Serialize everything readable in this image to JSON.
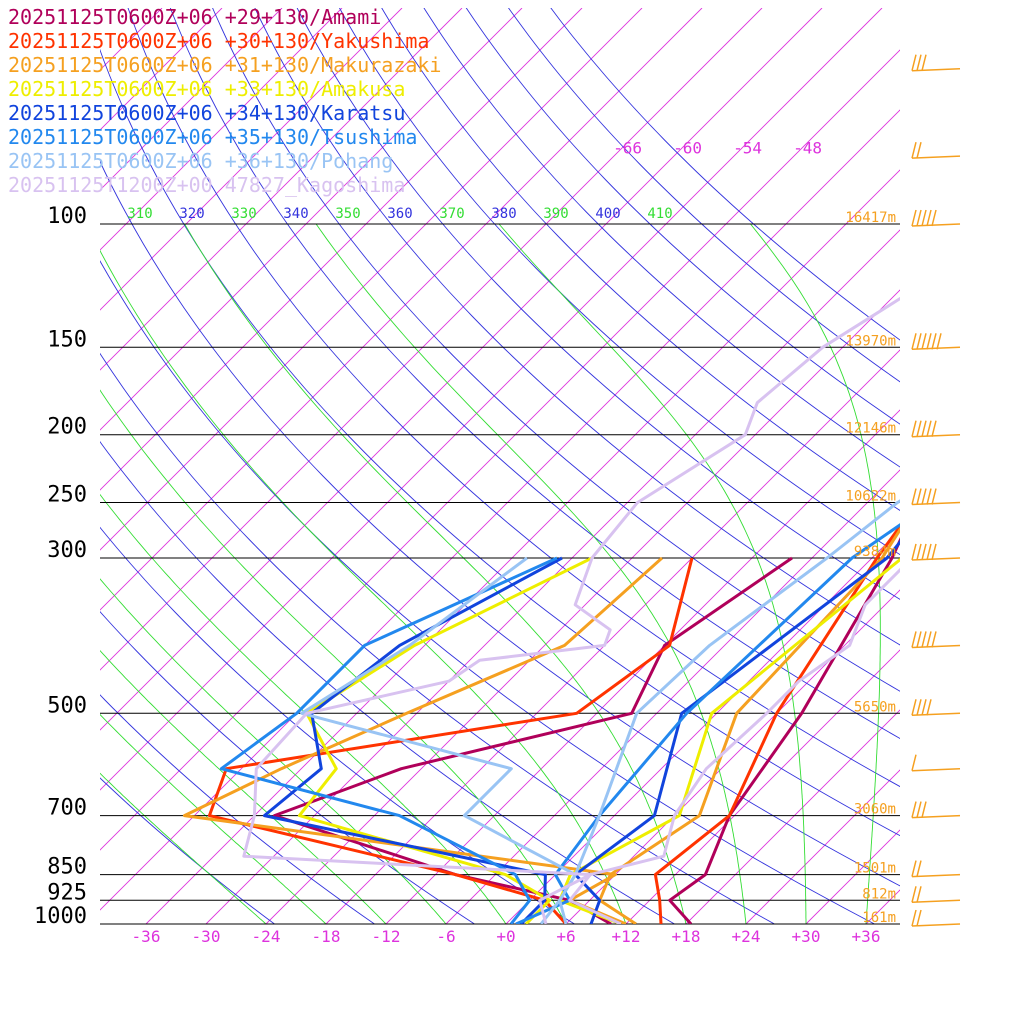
{
  "chart_data": {
    "type": "line",
    "title": "",
    "xlabel": "",
    "ylabel": "",
    "xlim": [
      -40,
      40
    ],
    "x_ticks": [
      "-36",
      "-30",
      "-24",
      "-18",
      "-12",
      "-6",
      "+0",
      "+6",
      "+12",
      "+18",
      "+24",
      "+30",
      "+36"
    ],
    "x_tick_values": [
      -36,
      -30,
      -24,
      -18,
      -12,
      -6,
      0,
      6,
      12,
      18,
      24,
      30,
      36
    ],
    "pressure_levels": [
      100,
      150,
      200,
      250,
      300,
      500,
      700,
      850,
      925,
      1000
    ],
    "pressure_labels": [
      "100",
      "150",
      "200",
      "250",
      "300",
      "500",
      "700",
      "850",
      "925",
      "1000"
    ],
    "heights": [
      {
        "p": 100,
        "label": "16417m"
      },
      {
        "p": 150,
        "label": "13970m"
      },
      {
        "p": 200,
        "label": "12146m"
      },
      {
        "p": 250,
        "label": "10622m"
      },
      {
        "p": 300,
        "label": "9384m"
      },
      {
        "p": 500,
        "label": "5650m"
      },
      {
        "p": 700,
        "label": "3060m"
      },
      {
        "p": 850,
        "label": "1501m"
      },
      {
        "p": 925,
        "label": "812m"
      },
      {
        "p": 1000,
        "label": "161m"
      }
    ],
    "theta_labels": [
      "310",
      "320",
      "330",
      "340",
      "350",
      "360",
      "370",
      "380",
      "390",
      "400",
      "410"
    ],
    "isotherm_top_labels": [
      "-66",
      "-60",
      "-54",
      "-48"
    ],
    "legend_position": "top-left",
    "colors": {
      "isotherm": "#dd33dd",
      "dry_adiabat": "#3333dd",
      "moist_adiabat": "#33dd33",
      "heights": "#f5a020",
      "wind": "#f5a020",
      "isobar": "#000000"
    },
    "series": [
      {
        "name": "20251125T0600Z+06 +29+130/Amami",
        "color": "#b0005a",
        "temp": [
          [
            1000,
            18.5
          ],
          [
            925,
            14
          ],
          [
            850,
            15
          ],
          [
            700,
            11.5
          ],
          [
            500,
            8.5
          ],
          [
            300,
            2
          ],
          [
            250,
            -1
          ],
          [
            200,
            -5
          ],
          [
            150,
            -6
          ],
          [
            120,
            -7
          ],
          [
            100,
            -2
          ],
          [
            80,
            10
          ],
          [
            60,
            50
          ],
          [
            50,
            55
          ]
        ],
        "dew": [
          [
            1000,
            10.5
          ],
          [
            925,
            4
          ],
          [
            850,
            -10
          ],
          [
            700,
            -34
          ],
          [
            600,
            -26
          ],
          [
            500,
            -8.5
          ],
          [
            400,
            -12
          ],
          [
            300,
            -8
          ]
        ]
      },
      {
        "name": "20251125T0600Z+06 +30+130/Yakushima",
        "color": "#ff3300",
        "temp": [
          [
            1000,
            15.5
          ],
          [
            925,
            13
          ],
          [
            850,
            10
          ],
          [
            700,
            11.5
          ],
          [
            500,
            6
          ],
          [
            300,
            0.5
          ],
          [
            250,
            -1
          ],
          [
            200,
            -4
          ],
          [
            150,
            -5.5
          ],
          [
            120,
            -6
          ],
          [
            100,
            -0.5
          ],
          [
            80,
            5
          ],
          [
            60,
            45
          ],
          [
            50,
            55
          ]
        ],
        "dew": [
          [
            1000,
            6
          ],
          [
            925,
            1.5
          ],
          [
            850,
            -10
          ],
          [
            700,
            -40.5
          ],
          [
            600,
            -43.5
          ],
          [
            500,
            -14
          ],
          [
            400,
            -11.5
          ],
          [
            300,
            -18
          ]
        ]
      },
      {
        "name": "20251125T0600Z+06 +31+130/Makurazaki",
        "color": "#f5a020",
        "temp": [
          [
            1000,
            13
          ],
          [
            925,
            7
          ],
          [
            850,
            5.5
          ],
          [
            700,
            8.5
          ],
          [
            500,
            2
          ],
          [
            300,
            1
          ],
          [
            250,
            -1
          ],
          [
            200,
            -6
          ],
          [
            150,
            -9
          ],
          [
            120,
            -7
          ],
          [
            100,
            1.5
          ],
          [
            80,
            4
          ],
          [
            60,
            45
          ],
          [
            50,
            55
          ]
        ],
        "dew": [
          [
            1000,
            12
          ],
          [
            925,
            4
          ],
          [
            850,
            6
          ],
          [
            700,
            -43
          ],
          [
            600,
            -38
          ],
          [
            500,
            -31
          ],
          [
            400,
            -22
          ],
          [
            300,
            -21
          ]
        ]
      },
      {
        "name": "20251125T0600Z+06 +33+130/Amakusa",
        "color": "#eeee00",
        "temp": [
          [
            1000,
            11.5
          ],
          [
            925,
            3
          ],
          [
            850,
            1.5
          ],
          [
            700,
            6.5
          ],
          [
            500,
            -0.5
          ],
          [
            300,
            3
          ],
          [
            250,
            -1
          ],
          [
            200,
            -7
          ],
          [
            150,
            -3.5
          ],
          [
            120,
            0
          ],
          [
            100,
            5
          ],
          [
            80,
            15
          ],
          [
            60,
            45
          ],
          [
            50,
            55
          ]
        ],
        "dew": [
          [
            1000,
            2
          ],
          [
            925,
            2
          ],
          [
            850,
            -5
          ],
          [
            700,
            -31.5
          ],
          [
            600,
            -32.5
          ],
          [
            500,
            -41
          ],
          [
            400,
            -37
          ],
          [
            300,
            -28
          ]
        ]
      },
      {
        "name": "20251125T0600Z+06 +34+130/Karatsu",
        "color": "#1144dd",
        "temp": [
          [
            1000,
            8.5
          ],
          [
            925,
            7
          ],
          [
            850,
            2
          ],
          [
            700,
            4
          ],
          [
            500,
            -3.5
          ],
          [
            300,
            1.5
          ],
          [
            250,
            0.5
          ],
          [
            200,
            -1
          ],
          [
            150,
            -0.5
          ],
          [
            120,
            -0.5
          ],
          [
            100,
            5
          ],
          [
            80,
            10
          ],
          [
            60,
            48
          ],
          [
            50,
            55
          ]
        ],
        "dew": [
          [
            1000,
            1.5
          ],
          [
            925,
            1.5
          ],
          [
            850,
            -1
          ],
          [
            700,
            -35
          ],
          [
            600,
            -34
          ],
          [
            500,
            -40.5
          ],
          [
            400,
            -38.5
          ],
          [
            300,
            -31
          ]
        ]
      },
      {
        "name": "20251125T0600Z+06 +35+130/Tsushima",
        "color": "#2288ee",
        "temp": [
          [
            1000,
            1
          ],
          [
            925,
            4
          ],
          [
            850,
            0
          ],
          [
            700,
            -1.5
          ],
          [
            500,
            -3
          ],
          [
            300,
            -2
          ],
          [
            250,
            0.5
          ],
          [
            200,
            0
          ],
          [
            150,
            1
          ],
          [
            120,
            1
          ],
          [
            100,
            6
          ],
          [
            80,
            15
          ],
          [
            60,
            52
          ],
          [
            50,
            60
          ]
        ],
        "dew": [
          [
            1000,
            0.5
          ],
          [
            925,
            0
          ],
          [
            850,
            -4
          ],
          [
            700,
            -21.5
          ],
          [
            600,
            -44
          ],
          [
            500,
            -42
          ],
          [
            400,
            -42
          ],
          [
            300,
            -31.5
          ]
        ]
      },
      {
        "name": "20251125T0600Z+06 +36+130/Pohang",
        "color": "#99c4f4",
        "temp": [
          [
            1000,
            6
          ],
          [
            925,
            3
          ],
          [
            850,
            2
          ],
          [
            700,
            -1.5
          ],
          [
            500,
            -8
          ],
          [
            400,
            -7.5
          ],
          [
            300,
            -4.5
          ],
          [
            250,
            -3
          ],
          [
            200,
            1
          ],
          [
            150,
            1.5
          ],
          [
            120,
            2.5
          ],
          [
            100,
            8
          ],
          [
            80,
            20
          ],
          [
            60,
            58
          ],
          [
            50,
            65
          ]
        ],
        "dew": [
          [
            1000,
            3.5
          ],
          [
            925,
            3
          ],
          [
            850,
            2
          ],
          [
            700,
            -15
          ],
          [
            600,
            -15
          ],
          [
            500,
            -41.5
          ],
          [
            400,
            -37.5
          ],
          [
            300,
            -34.5
          ]
        ]
      },
      {
        "name": "20251125T1200Z+00 47827_Kagoshima",
        "color": "#d8c2f0",
        "temp": [
          [
            1000,
            11.5
          ],
          [
            925,
            4
          ],
          [
            850,
            3.5
          ],
          [
            800,
            9
          ],
          [
            700,
            6
          ],
          [
            600,
            4.5
          ],
          [
            500,
            5
          ],
          [
            450,
            5
          ],
          [
            400,
            6.5
          ],
          [
            350,
            4
          ],
          [
            300,
            4
          ],
          [
            250,
            -2
          ],
          [
            200,
            -6
          ],
          [
            170,
            -4
          ],
          [
            150,
            -5
          ],
          [
            130,
            -6
          ],
          [
            110,
            -1
          ],
          [
            100,
            -1
          ]
        ],
        "dew": [
          [
            1000,
            4
          ],
          [
            925,
            1
          ],
          [
            850,
            3.5
          ],
          [
            800,
            -33
          ],
          [
            700,
            -36
          ],
          [
            600,
            -40.5
          ],
          [
            500,
            -41
          ],
          [
            450,
            -30
          ],
          [
            420,
            -29
          ],
          [
            400,
            -18
          ],
          [
            380,
            -19
          ],
          [
            350,
            -25
          ],
          [
            300,
            -28
          ],
          [
            250,
            -29
          ],
          [
            200,
            -25
          ],
          [
            180,
            -27
          ],
          [
            150,
            -26
          ],
          [
            120,
            -22
          ],
          [
            100,
            -17
          ]
        ]
      }
    ],
    "wind_barbs": [
      {
        "p": 60,
        "barbs": 3
      },
      {
        "p": 80,
        "barbs": 2
      },
      {
        "p": 100,
        "barbs": 5
      },
      {
        "p": 150,
        "barbs": 6
      },
      {
        "p": 200,
        "barbs": 5
      },
      {
        "p": 250,
        "barbs": 5
      },
      {
        "p": 300,
        "barbs": 5
      },
      {
        "p": 400,
        "barbs": 5
      },
      {
        "p": 500,
        "barbs": 4
      },
      {
        "p": 600,
        "barbs": 1
      },
      {
        "p": 700,
        "barbs": 3
      },
      {
        "p": 850,
        "barbs": 2
      },
      {
        "p": 925,
        "barbs": 2
      },
      {
        "p": 1000,
        "barbs": 2
      }
    ]
  }
}
